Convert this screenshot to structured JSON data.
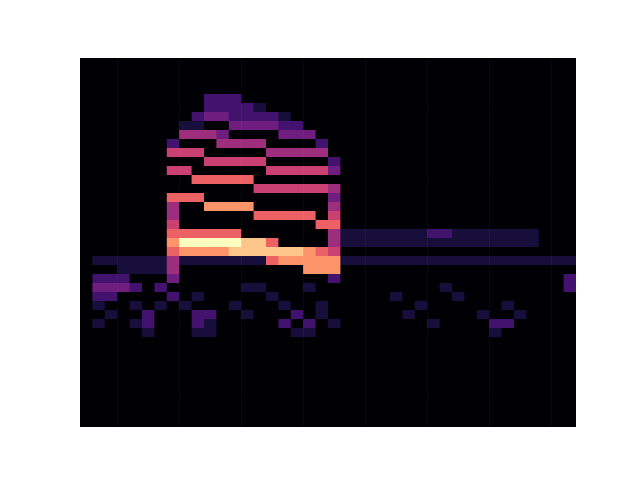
{
  "chart_data": {
    "type": "heatmap",
    "tick_labels": false,
    "color_range": [
      0,
      9
    ],
    "cells": [
      [
        0,
        0,
        0,
        0,
        0,
        0,
        0,
        0,
        0,
        0,
        0,
        0,
        0,
        0,
        0,
        0,
        0,
        0,
        0,
        0,
        0,
        0,
        0,
        0,
        0,
        0,
        0,
        0,
        0,
        0,
        0,
        0,
        0,
        0,
        0,
        0,
        0,
        0,
        0,
        0
      ],
      [
        0,
        0,
        0,
        0,
        0,
        0,
        0,
        0,
        0,
        0,
        0,
        0,
        0,
        0,
        0,
        0,
        0,
        0,
        0,
        0,
        0,
        0,
        0,
        0,
        0,
        0,
        0,
        0,
        0,
        0,
        0,
        0,
        0,
        0,
        0,
        0,
        0,
        0,
        0,
        0
      ],
      [
        0,
        0,
        0,
        0,
        0,
        0,
        0,
        0,
        0,
        0,
        0,
        0,
        0,
        0,
        0,
        0,
        0,
        0,
        0,
        0,
        0,
        0,
        0,
        0,
        0,
        0,
        0,
        0,
        0,
        0,
        0,
        0,
        0,
        0,
        0,
        0,
        0,
        0,
        0,
        0
      ],
      [
        0,
        0,
        0,
        0,
        0,
        0,
        0,
        0,
        0,
        0,
        0,
        0,
        0,
        0,
        0,
        0,
        0,
        0,
        0,
        0,
        0,
        0,
        0,
        0,
        0,
        0,
        0,
        0,
        0,
        0,
        0,
        0,
        0,
        0,
        0,
        0,
        0,
        0,
        0,
        0
      ],
      [
        0,
        0,
        0,
        0,
        0,
        0,
        0,
        0,
        0,
        0,
        2,
        2,
        2,
        0,
        0,
        0,
        0,
        0,
        0,
        0,
        0,
        0,
        0,
        0,
        0,
        0,
        0,
        0,
        0,
        0,
        0,
        0,
        0,
        0,
        0,
        0,
        0,
        0,
        0,
        0
      ],
      [
        0,
        0,
        0,
        0,
        0,
        0,
        0,
        0,
        0,
        0,
        2,
        2,
        2,
        2,
        1,
        0,
        0,
        0,
        0,
        0,
        0,
        0,
        0,
        0,
        0,
        0,
        0,
        0,
        0,
        0,
        0,
        0,
        0,
        0,
        0,
        0,
        0,
        0,
        0,
        0
      ],
      [
        0,
        0,
        0,
        0,
        0,
        0,
        0,
        0,
        0,
        2,
        3,
        3,
        2,
        2,
        2,
        2,
        1,
        0,
        0,
        0,
        0,
        0,
        0,
        0,
        0,
        0,
        0,
        0,
        0,
        0,
        0,
        0,
        0,
        0,
        0,
        0,
        0,
        0,
        0,
        0
      ],
      [
        0,
        0,
        0,
        0,
        0,
        0,
        0,
        0,
        1,
        1,
        0,
        0,
        3,
        3,
        3,
        3,
        2,
        2,
        0,
        0,
        0,
        0,
        0,
        0,
        0,
        0,
        0,
        0,
        0,
        0,
        0,
        0,
        0,
        0,
        0,
        0,
        0,
        0,
        0,
        0
      ],
      [
        0,
        0,
        0,
        0,
        0,
        0,
        0,
        0,
        4,
        4,
        4,
        3,
        0,
        0,
        0,
        0,
        3,
        3,
        3,
        0,
        0,
        0,
        0,
        0,
        0,
        0,
        0,
        0,
        0,
        0,
        0,
        0,
        0,
        0,
        0,
        0,
        0,
        0,
        0,
        0
      ],
      [
        0,
        0,
        0,
        0,
        0,
        0,
        0,
        2,
        0,
        0,
        0,
        4,
        4,
        4,
        4,
        0,
        0,
        0,
        0,
        2,
        0,
        0,
        0,
        0,
        0,
        0,
        0,
        0,
        0,
        0,
        0,
        0,
        0,
        0,
        0,
        0,
        0,
        0,
        0,
        0
      ],
      [
        0,
        0,
        0,
        0,
        0,
        0,
        0,
        5,
        5,
        5,
        0,
        0,
        0,
        0,
        0,
        4,
        4,
        4,
        4,
        4,
        0,
        0,
        0,
        0,
        0,
        0,
        0,
        0,
        0,
        0,
        0,
        0,
        0,
        0,
        0,
        0,
        0,
        0,
        0,
        0
      ],
      [
        0,
        0,
        0,
        0,
        0,
        0,
        0,
        0,
        0,
        0,
        5,
        5,
        5,
        5,
        5,
        0,
        0,
        0,
        0,
        0,
        2,
        0,
        0,
        0,
        0,
        0,
        0,
        0,
        0,
        0,
        0,
        0,
        0,
        0,
        0,
        0,
        0,
        0,
        0,
        0
      ],
      [
        0,
        0,
        0,
        0,
        0,
        0,
        0,
        5,
        5,
        0,
        0,
        0,
        0,
        0,
        0,
        5,
        5,
        5,
        5,
        5,
        3,
        0,
        0,
        0,
        0,
        0,
        0,
        0,
        0,
        0,
        0,
        0,
        0,
        0,
        0,
        0,
        0,
        0,
        0,
        0
      ],
      [
        0,
        0,
        0,
        0,
        0,
        0,
        0,
        0,
        0,
        6,
        6,
        6,
        6,
        6,
        0,
        0,
        0,
        0,
        0,
        0,
        0,
        0,
        0,
        0,
        0,
        0,
        0,
        0,
        0,
        0,
        0,
        0,
        0,
        0,
        0,
        0,
        0,
        0,
        0,
        0
      ],
      [
        0,
        0,
        0,
        0,
        0,
        0,
        0,
        0,
        0,
        0,
        0,
        0,
        0,
        0,
        5,
        5,
        5,
        5,
        5,
        5,
        4,
        0,
        0,
        0,
        0,
        0,
        0,
        0,
        0,
        0,
        0,
        0,
        0,
        0,
        0,
        0,
        0,
        0,
        0,
        0
      ],
      [
        0,
        0,
        0,
        0,
        0,
        0,
        0,
        6,
        6,
        6,
        0,
        0,
        0,
        0,
        0,
        0,
        0,
        0,
        0,
        0,
        3,
        0,
        0,
        0,
        0,
        0,
        0,
        0,
        0,
        0,
        0,
        0,
        0,
        0,
        0,
        0,
        0,
        0,
        0,
        0
      ],
      [
        0,
        0,
        0,
        0,
        0,
        0,
        0,
        4,
        0,
        0,
        7,
        7,
        7,
        7,
        0,
        0,
        0,
        0,
        0,
        0,
        4,
        0,
        0,
        0,
        0,
        0,
        0,
        0,
        0,
        0,
        0,
        0,
        0,
        0,
        0,
        0,
        0,
        0,
        0,
        0
      ],
      [
        0,
        0,
        0,
        0,
        0,
        0,
        0,
        4,
        0,
        0,
        0,
        0,
        0,
        0,
        6,
        6,
        6,
        6,
        6,
        0,
        5,
        0,
        0,
        0,
        0,
        0,
        0,
        0,
        0,
        0,
        0,
        0,
        0,
        0,
        0,
        0,
        0,
        0,
        0,
        0
      ],
      [
        0,
        0,
        0,
        0,
        0,
        0,
        0,
        5,
        0,
        0,
        0,
        0,
        0,
        0,
        0,
        0,
        0,
        0,
        0,
        6,
        6,
        0,
        0,
        0,
        0,
        0,
        0,
        0,
        0,
        0,
        0,
        0,
        0,
        0,
        0,
        0,
        0,
        0,
        0,
        0
      ],
      [
        0,
        0,
        0,
        0,
        0,
        0,
        0,
        6,
        6,
        6,
        6,
        6,
        6,
        0,
        0,
        0,
        0,
        0,
        0,
        0,
        4,
        1,
        1,
        1,
        1,
        1,
        1,
        1,
        2,
        2,
        1,
        1,
        1,
        1,
        1,
        1,
        1,
        0,
        0,
        0
      ],
      [
        0,
        0,
        0,
        0,
        0,
        0,
        0,
        7,
        9,
        9,
        9,
        9,
        9,
        8,
        8,
        6,
        0,
        0,
        0,
        0,
        4,
        1,
        1,
        1,
        1,
        1,
        1,
        1,
        1,
        1,
        1,
        1,
        1,
        1,
        1,
        1,
        1,
        0,
        0,
        0
      ],
      [
        0,
        0,
        0,
        0,
        0,
        0,
        0,
        6,
        7,
        7,
        7,
        7,
        8,
        8,
        8,
        8,
        8,
        8,
        7,
        6,
        5,
        0,
        0,
        0,
        0,
        0,
        0,
        0,
        0,
        0,
        0,
        0,
        0,
        0,
        0,
        0,
        0,
        0,
        0,
        0
      ],
      [
        0,
        1,
        1,
        1,
        1,
        1,
        1,
        4,
        1,
        1,
        1,
        1,
        1,
        1,
        1,
        6,
        7,
        7,
        7,
        7,
        7,
        1,
        1,
        1,
        1,
        1,
        1,
        1,
        1,
        1,
        1,
        1,
        1,
        1,
        1,
        1,
        1,
        1,
        1,
        1
      ],
      [
        0,
        0,
        0,
        1,
        1,
        1,
        1,
        4,
        0,
        0,
        0,
        0,
        0,
        0,
        0,
        0,
        0,
        0,
        7,
        7,
        7,
        0,
        0,
        0,
        0,
        0,
        0,
        0,
        0,
        0,
        0,
        0,
        0,
        0,
        0,
        0,
        0,
        0,
        0,
        0
      ],
      [
        0,
        2,
        2,
        2,
        0,
        0,
        0,
        3,
        0,
        0,
        0,
        0,
        0,
        0,
        0,
        0,
        0,
        0,
        0,
        0,
        2,
        0,
        0,
        0,
        0,
        0,
        0,
        0,
        0,
        0,
        0,
        0,
        0,
        0,
        0,
        0,
        0,
        0,
        0,
        2
      ],
      [
        0,
        3,
        3,
        3,
        2,
        0,
        2,
        0,
        0,
        0,
        0,
        0,
        0,
        1,
        1,
        0,
        0,
        0,
        1,
        0,
        0,
        0,
        0,
        0,
        0,
        0,
        0,
        0,
        0,
        1,
        0,
        0,
        0,
        0,
        0,
        0,
        0,
        0,
        0,
        2
      ],
      [
        0,
        2,
        2,
        0,
        0,
        0,
        0,
        2,
        0,
        1,
        0,
        0,
        0,
        0,
        0,
        1,
        0,
        0,
        0,
        0,
        0,
        0,
        0,
        0,
        0,
        1,
        0,
        0,
        0,
        0,
        1,
        0,
        0,
        0,
        0,
        0,
        0,
        0,
        0,
        0
      ],
      [
        0,
        1,
        0,
        0,
        1,
        0,
        1,
        0,
        1,
        0,
        0,
        0,
        1,
        0,
        0,
        0,
        1,
        0,
        0,
        1,
        0,
        0,
        0,
        0,
        0,
        0,
        0,
        1,
        0,
        0,
        0,
        0,
        0,
        0,
        1,
        0,
        0,
        0,
        0,
        0
      ],
      [
        0,
        0,
        1,
        0,
        0,
        2,
        0,
        0,
        0,
        2,
        2,
        0,
        0,
        1,
        0,
        0,
        0,
        2,
        0,
        1,
        0,
        0,
        0,
        0,
        0,
        0,
        1,
        0,
        0,
        0,
        0,
        0,
        1,
        0,
        0,
        1,
        0,
        0,
        0,
        0
      ],
      [
        0,
        1,
        0,
        0,
        1,
        2,
        0,
        0,
        0,
        2,
        1,
        0,
        0,
        0,
        0,
        0,
        2,
        0,
        2,
        0,
        1,
        0,
        0,
        0,
        0,
        0,
        0,
        0,
        1,
        0,
        0,
        0,
        0,
        2,
        2,
        0,
        0,
        0,
        0,
        0
      ],
      [
        0,
        0,
        0,
        0,
        0,
        1,
        0,
        0,
        0,
        1,
        1,
        0,
        0,
        0,
        0,
        0,
        0,
        1,
        1,
        0,
        0,
        0,
        0,
        0,
        0,
        0,
        0,
        0,
        0,
        0,
        0,
        0,
        0,
        1,
        0,
        0,
        0,
        0,
        0,
        0
      ],
      [
        0,
        0,
        0,
        0,
        0,
        0,
        0,
        0,
        0,
        0,
        0,
        0,
        0,
        0,
        0,
        0,
        0,
        0,
        0,
        0,
        0,
        0,
        0,
        0,
        0,
        0,
        0,
        0,
        0,
        0,
        0,
        0,
        0,
        0,
        0,
        0,
        0,
        0,
        0,
        0
      ],
      [
        0,
        0,
        0,
        0,
        0,
        0,
        0,
        0,
        0,
        0,
        0,
        0,
        0,
        0,
        0,
        0,
        0,
        0,
        0,
        0,
        0,
        0,
        0,
        0,
        0,
        0,
        0,
        0,
        0,
        0,
        0,
        0,
        0,
        0,
        0,
        0,
        0,
        0,
        0,
        0
      ],
      [
        0,
        0,
        0,
        0,
        0,
        0,
        0,
        0,
        0,
        0,
        0,
        0,
        0,
        0,
        0,
        0,
        0,
        0,
        0,
        0,
        0,
        0,
        0,
        0,
        0,
        0,
        0,
        0,
        0,
        0,
        0,
        0,
        0,
        0,
        0,
        0,
        0,
        0,
        0,
        0
      ],
      [
        0,
        0,
        0,
        0,
        0,
        0,
        0,
        0,
        0,
        0,
        0,
        0,
        0,
        0,
        0,
        0,
        0,
        0,
        0,
        0,
        0,
        0,
        0,
        0,
        0,
        0,
        0,
        0,
        0,
        0,
        0,
        0,
        0,
        0,
        0,
        0,
        0,
        0,
        0,
        0
      ],
      [
        0,
        0,
        0,
        0,
        0,
        0,
        0,
        0,
        0,
        0,
        0,
        0,
        0,
        0,
        0,
        0,
        0,
        0,
        0,
        0,
        0,
        0,
        0,
        0,
        0,
        0,
        0,
        0,
        0,
        0,
        0,
        0,
        0,
        0,
        0,
        0,
        0,
        0,
        0,
        0
      ],
      [
        0,
        0,
        0,
        0,
        0,
        0,
        0,
        0,
        0,
        0,
        0,
        0,
        0,
        0,
        0,
        0,
        0,
        0,
        0,
        0,
        0,
        0,
        0,
        0,
        0,
        0,
        0,
        0,
        0,
        0,
        0,
        0,
        0,
        0,
        0,
        0,
        0,
        0,
        0,
        0
      ],
      [
        0,
        0,
        0,
        0,
        0,
        0,
        0,
        0,
        0,
        0,
        0,
        0,
        0,
        0,
        0,
        0,
        0,
        0,
        0,
        0,
        0,
        0,
        0,
        0,
        0,
        0,
        0,
        0,
        0,
        0,
        0,
        0,
        0,
        0,
        0,
        0,
        0,
        0,
        0,
        0
      ],
      [
        0,
        0,
        0,
        0,
        0,
        0,
        0,
        0,
        0,
        0,
        0,
        0,
        0,
        0,
        0,
        0,
        0,
        0,
        0,
        0,
        0,
        0,
        0,
        0,
        0,
        0,
        0,
        0,
        0,
        0,
        0,
        0,
        0,
        0,
        0,
        0,
        0,
        0,
        0,
        0
      ],
      [
        0,
        0,
        0,
        0,
        0,
        0,
        0,
        0,
        0,
        0,
        0,
        0,
        0,
        0,
        0,
        0,
        0,
        0,
        0,
        0,
        0,
        0,
        0,
        0,
        0,
        0,
        0,
        0,
        0,
        0,
        0,
        0,
        0,
        0,
        0,
        0,
        0,
        0,
        0,
        0
      ],
      [
        0,
        0,
        0,
        0,
        0,
        0,
        0,
        0,
        0,
        0,
        0,
        0,
        0,
        0,
        0,
        0,
        0,
        0,
        0,
        0,
        0,
        0,
        0,
        0,
        0,
        0,
        0,
        0,
        0,
        0,
        0,
        0,
        0,
        0,
        0,
        0,
        0,
        0,
        0,
        0
      ]
    ]
  }
}
